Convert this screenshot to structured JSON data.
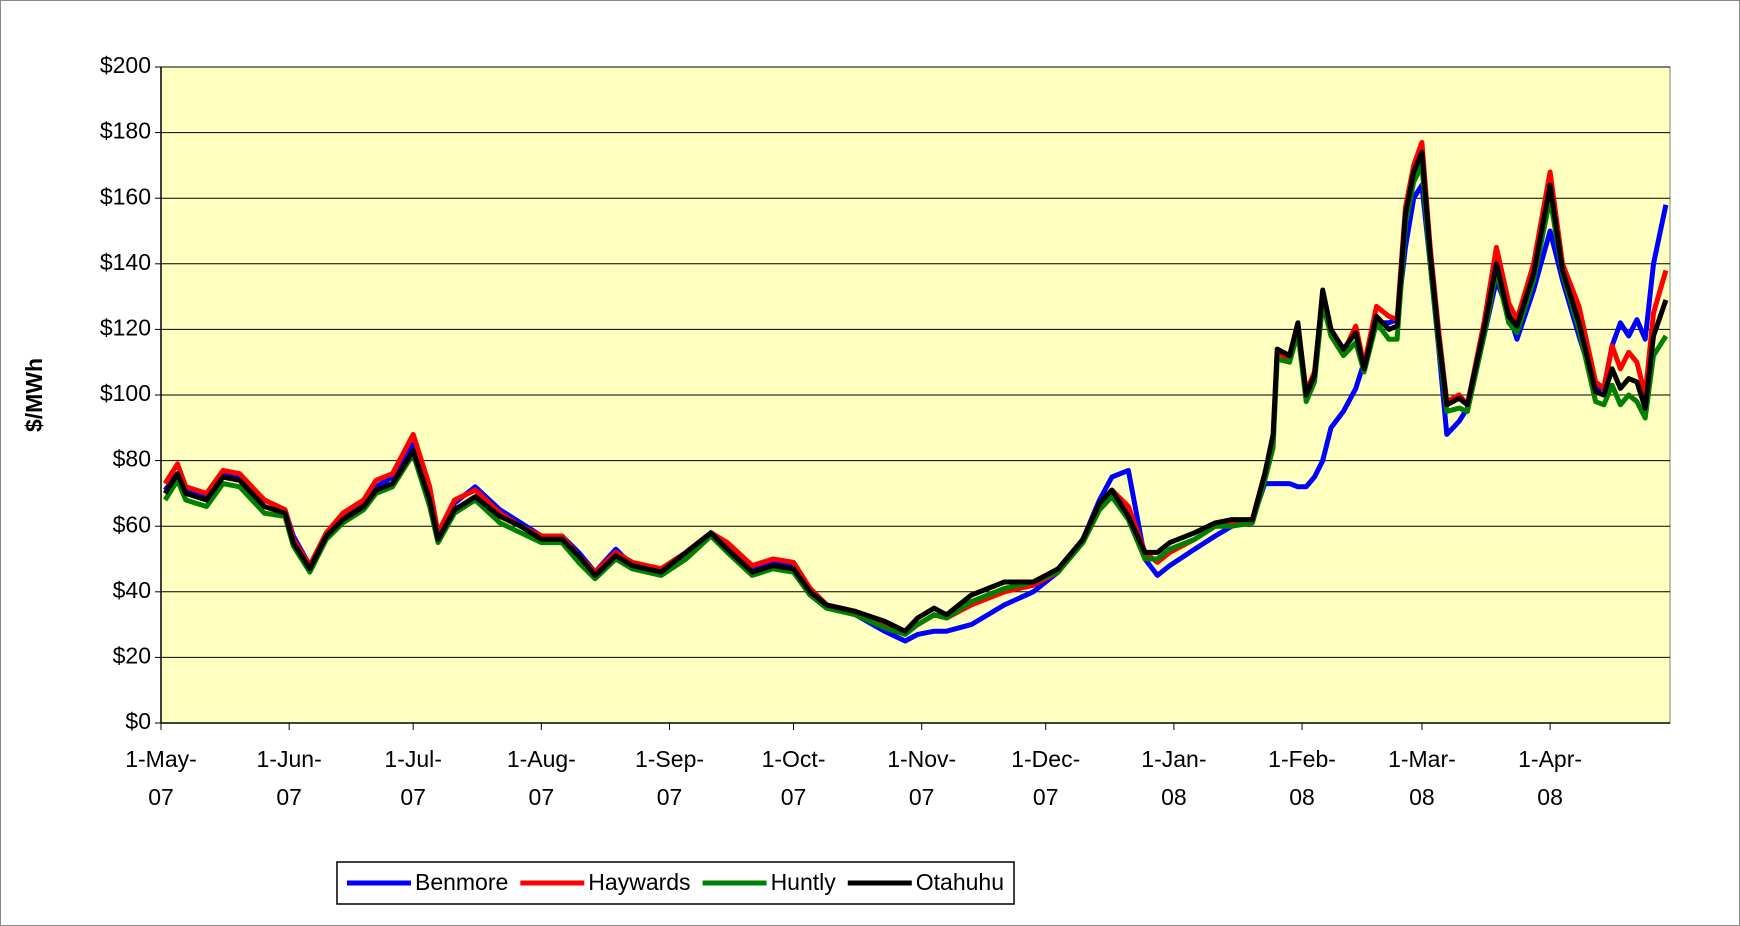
{
  "chart_data": {
    "type": "line",
    "y_label": "$/MWh",
    "x": [
      "2007-05-02",
      "2007-05-05",
      "2007-05-07",
      "2007-05-12",
      "2007-05-16",
      "2007-05-20",
      "2007-05-26",
      "2007-05-31",
      "2007-06-02",
      "2007-06-06",
      "2007-06-10",
      "2007-06-14",
      "2007-06-19",
      "2007-06-22",
      "2007-06-26",
      "2007-07-01",
      "2007-07-05",
      "2007-07-07",
      "2007-07-11",
      "2007-07-16",
      "2007-07-22",
      "2007-07-27",
      "2007-08-01",
      "2007-08-06",
      "2007-08-10",
      "2007-08-14",
      "2007-08-19",
      "2007-08-23",
      "2007-08-30",
      "2007-09-05",
      "2007-09-11",
      "2007-09-15",
      "2007-09-21",
      "2007-09-26",
      "2007-10-01",
      "2007-10-05",
      "2007-10-09",
      "2007-10-16",
      "2007-10-23",
      "2007-10-28",
      "2007-10-31",
      "2007-11-04",
      "2007-11-07",
      "2007-11-13",
      "2007-11-21",
      "2007-11-28",
      "2007-12-04",
      "2007-12-10",
      "2007-12-14",
      "2007-12-17",
      "2007-12-21",
      "2007-12-25",
      "2007-12-28",
      "2007-12-31",
      "2008-01-06",
      "2008-01-11",
      "2008-01-15",
      "2008-01-20",
      "2008-01-23",
      "2008-01-25",
      "2008-01-26",
      "2008-01-29",
      "2008-01-31",
      "2008-02-02",
      "2008-02-04",
      "2008-02-06",
      "2008-02-08",
      "2008-02-11",
      "2008-02-14",
      "2008-02-16",
      "2008-02-19",
      "2008-02-22",
      "2008-02-24",
      "2008-02-26",
      "2008-02-28",
      "2008-03-01",
      "2008-03-03",
      "2008-03-05",
      "2008-03-07",
      "2008-03-10",
      "2008-03-12",
      "2008-03-16",
      "2008-03-19",
      "2008-03-22",
      "2008-03-24",
      "2008-03-28",
      "2008-04-01",
      "2008-04-04",
      "2008-04-08",
      "2008-04-12",
      "2008-04-14",
      "2008-04-16",
      "2008-04-18",
      "2008-04-20",
      "2008-04-22",
      "2008-04-24",
      "2008-04-26",
      "2008-04-29"
    ],
    "series": [
      {
        "name": "Benmore",
        "color": "#0000ff",
        "values": [
          71,
          76,
          71,
          69,
          76,
          75,
          68,
          65,
          57,
          48,
          58,
          63,
          67,
          72,
          75,
          85,
          70,
          57,
          67,
          72,
          65,
          61,
          57,
          57,
          52,
          46,
          53,
          48,
          47,
          52,
          58,
          54,
          47,
          49,
          48,
          41,
          36,
          33,
          28,
          25,
          27,
          28,
          28,
          30,
          36,
          40,
          46,
          56,
          68,
          75,
          77,
          50,
          45,
          48,
          53,
          57,
          60,
          62,
          73,
          73,
          73,
          73,
          72,
          72,
          75,
          80,
          90,
          95,
          102,
          110,
          122,
          122,
          123,
          145,
          160,
          164,
          140,
          115,
          88,
          92,
          96,
          118,
          135,
          125,
          117,
          132,
          150,
          135,
          118,
          102,
          102,
          115,
          122,
          118,
          123,
          117,
          140,
          158
        ]
      },
      {
        "name": "Haywards",
        "color": "#ff0000",
        "values": [
          73,
          79,
          72,
          70,
          77,
          76,
          68,
          65,
          56,
          48,
          58,
          64,
          68,
          74,
          76,
          88,
          72,
          58,
          68,
          71,
          64,
          60,
          57,
          57,
          51,
          46,
          52,
          49,
          47,
          52,
          58,
          55,
          48,
          50,
          49,
          41,
          36,
          34,
          30,
          28,
          30,
          33,
          32,
          36,
          40,
          42,
          46,
          56,
          67,
          71,
          66,
          52,
          49,
          52,
          56,
          60,
          61,
          62,
          76,
          86,
          113,
          111,
          121,
          101,
          107,
          130,
          120,
          113,
          121,
          109,
          127,
          124,
          123,
          157,
          170,
          177,
          145,
          120,
          98,
          100,
          97,
          122,
          145,
          128,
          123,
          140,
          168,
          140,
          127,
          104,
          102,
          115,
          108,
          113,
          110,
          100,
          125,
          138
        ]
      },
      {
        "name": "Huntly",
        "color": "#008000",
        "values": [
          68,
          74,
          68,
          66,
          73,
          72,
          64,
          63,
          54,
          46,
          56,
          61,
          65,
          70,
          72,
          82,
          66,
          55,
          64,
          68,
          61,
          58,
          55,
          55,
          49,
          44,
          50,
          47,
          45,
          50,
          57,
          52,
          45,
          47,
          46,
          39,
          35,
          33,
          29,
          27,
          30,
          33,
          32,
          37,
          41,
          43,
          46,
          55,
          65,
          69,
          62,
          50,
          50,
          53,
          56,
          60,
          60,
          61,
          74,
          84,
          111,
          110,
          119,
          98,
          104,
          128,
          118,
          112,
          116,
          107,
          122,
          117,
          117,
          152,
          165,
          170,
          140,
          116,
          95,
          96,
          95,
          118,
          138,
          122,
          119,
          135,
          160,
          137,
          120,
          98,
          97,
          103,
          97,
          100,
          98,
          93,
          112,
          118
        ]
      },
      {
        "name": "Otahuhu",
        "color": "#000000",
        "values": [
          70,
          76,
          70,
          68,
          75,
          74,
          66,
          64,
          55,
          47,
          57,
          62,
          66,
          71,
          73,
          83,
          68,
          56,
          65,
          69,
          63,
          60,
          56,
          56,
          51,
          45,
          51,
          48,
          46,
          52,
          58,
          53,
          46,
          48,
          47,
          40,
          36,
          34,
          31,
          28,
          32,
          35,
          33,
          39,
          43,
          43,
          47,
          56,
          67,
          71,
          63,
          52,
          52,
          55,
          58,
          61,
          62,
          62,
          76,
          88,
          114,
          112,
          122,
          100,
          106,
          132,
          120,
          114,
          119,
          108,
          124,
          120,
          121,
          155,
          168,
          174,
          143,
          118,
          97,
          99,
          97,
          120,
          140,
          124,
          121,
          137,
          164,
          138,
          122,
          101,
          100,
          108,
          102,
          105,
          104,
          96,
          118,
          129
        ]
      }
    ],
    "xlim": [
      "2007-05-01",
      "2008-04-30"
    ],
    "xticks": [
      {
        "value": "2007-05-01",
        "label": "1-May-07"
      },
      {
        "value": "2007-06-01",
        "label": "1-Jun-07"
      },
      {
        "value": "2007-07-01",
        "label": "1-Jul-07"
      },
      {
        "value": "2007-08-01",
        "label": "1-Aug-07"
      },
      {
        "value": "2007-09-01",
        "label": "1-Sep-07"
      },
      {
        "value": "2007-10-01",
        "label": "1-Oct-07"
      },
      {
        "value": "2007-11-01",
        "label": "1-Nov-07"
      },
      {
        "value": "2007-12-01",
        "label": "1-Dec-07"
      },
      {
        "value": "2008-01-01",
        "label": "1-Jan-08"
      },
      {
        "value": "2008-02-01",
        "label": "1-Feb-08"
      },
      {
        "value": "2008-03-01",
        "label": "1-Mar-08"
      },
      {
        "value": "2008-04-01",
        "label": "1-Apr-08"
      }
    ],
    "ylim": [
      0,
      200
    ],
    "yticks": [
      {
        "value": 0,
        "label": "$0"
      },
      {
        "value": 20,
        "label": "$20"
      },
      {
        "value": 40,
        "label": "$40"
      },
      {
        "value": 60,
        "label": "$60"
      },
      {
        "value": 80,
        "label": "$80"
      },
      {
        "value": 100,
        "label": "$100"
      },
      {
        "value": 120,
        "label": "$120"
      },
      {
        "value": 140,
        "label": "$140"
      },
      {
        "value": 160,
        "label": "$160"
      },
      {
        "value": 180,
        "label": "$180"
      },
      {
        "value": 200,
        "label": "$200"
      }
    ],
    "grid": true,
    "legend": "bottom",
    "plot_background": "#ffffc0"
  }
}
